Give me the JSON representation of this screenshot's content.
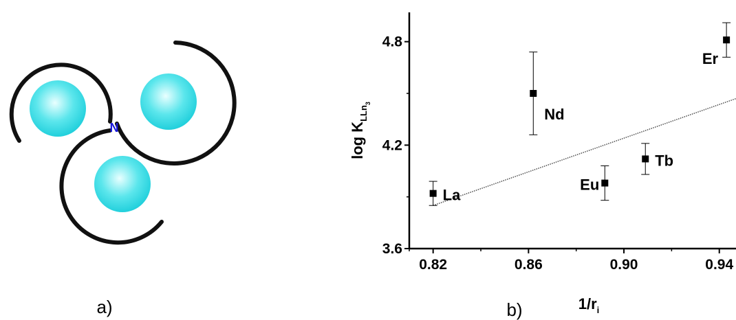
{
  "panel_a": {
    "label": "a)",
    "center_label": "N",
    "center_label_color": "#1a1adb",
    "sphere_color": "#33dde6",
    "arc_color": "#111111"
  },
  "panel_b": {
    "label": "b)"
  },
  "chart_data": {
    "type": "scatter",
    "xlabel_main": "1/r",
    "xlabel_sub": "i",
    "ylabel_main": "log K",
    "ylabel_sub": "LLn",
    "ylabel_subsub": "3",
    "xlim": [
      0.81,
      0.947
    ],
    "ylim": [
      3.6,
      4.97
    ],
    "xticks": [
      0.82,
      0.86,
      0.9,
      0.94
    ],
    "xtick_labels": [
      "0.82",
      "0.86",
      "0.90",
      "0.94"
    ],
    "yticks": [
      3.6,
      4.2,
      4.8
    ],
    "ytick_labels": [
      "3.6",
      "4.2",
      "4.8"
    ],
    "points": [
      {
        "label": "La",
        "x": 0.82,
        "y": 3.92,
        "err": 0.07,
        "label_side": "right"
      },
      {
        "label": "Nd",
        "x": 0.862,
        "y": 4.5,
        "err": 0.24,
        "label_side": "right-below"
      },
      {
        "label": "Eu",
        "x": 0.892,
        "y": 3.98,
        "err": 0.1,
        "label_side": "left"
      },
      {
        "label": "Tb",
        "x": 0.909,
        "y": 4.12,
        "err": 0.09,
        "label_side": "right"
      },
      {
        "label": "Er",
        "x": 0.943,
        "y": 4.81,
        "err": 0.1,
        "label_side": "left-below"
      }
    ],
    "fit_line": {
      "x": [
        0.82,
        0.947
      ],
      "y": [
        3.85,
        4.47
      ],
      "style": "dotted"
    },
    "marker_color": "#000000"
  }
}
